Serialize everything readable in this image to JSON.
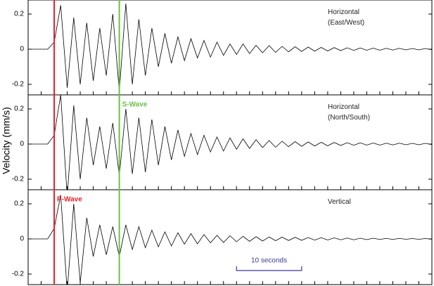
{
  "chart_data": {
    "type": "line",
    "y_label": "Velocity (mm/s)",
    "x": [
      0,
      1,
      2,
      3,
      4,
      5,
      6,
      7,
      8,
      9,
      10,
      11,
      12,
      13,
      14,
      15,
      16,
      17,
      18,
      19,
      20,
      21,
      22,
      23,
      24,
      25,
      26,
      27,
      28,
      29,
      30,
      31,
      32,
      33,
      34,
      35,
      36,
      37,
      38,
      39,
      40,
      41,
      42,
      43,
      44,
      45,
      46,
      47,
      48,
      49,
      50,
      51,
      52,
      53,
      54,
      55,
      56,
      57,
      58,
      59,
      60,
      61,
      62
    ],
    "xlim": [
      0,
      62
    ],
    "xticks": [
      0,
      2,
      4,
      6,
      8,
      10,
      12,
      14,
      16,
      18,
      20,
      22,
      24,
      26,
      28,
      30,
      32,
      34,
      36,
      38,
      40,
      42,
      44,
      46,
      48,
      50,
      52,
      54,
      56,
      58,
      60,
      62
    ],
    "ylim": [
      -0.26,
      0.28
    ],
    "yticks": [
      -0.2,
      0,
      0.2
    ],
    "series": [
      {
        "name": "Horizontal (East/West)",
        "color": "#000000",
        "values": [
          0,
          0,
          0,
          0,
          0.04,
          0.25,
          -0.22,
          0.18,
          -0.2,
          0.15,
          -0.18,
          0.12,
          -0.15,
          0.2,
          -0.24,
          0.26,
          -0.2,
          0.17,
          -0.15,
          0.12,
          -0.1,
          0.09,
          -0.08,
          0.07,
          -0.065,
          0.06,
          -0.05,
          0.05,
          -0.045,
          0.04,
          -0.035,
          0.03,
          -0.03,
          0.03,
          -0.025,
          0.022,
          -0.02,
          0.02,
          -0.018,
          0.016,
          -0.015,
          0.014,
          -0.013,
          0.012,
          -0.011,
          0.01,
          -0.01,
          0.009,
          -0.008,
          0.008,
          -0.007,
          0.007,
          -0.006,
          0.006,
          -0.006,
          0.005,
          -0.005,
          0.005,
          -0.004,
          0.004,
          -0.004,
          0.004,
          -0.003
        ]
      },
      {
        "name": "Horizontal (North/South)",
        "color": "#000000",
        "values": [
          0,
          0,
          0,
          0,
          0.05,
          0.28,
          -0.3,
          0.22,
          -0.2,
          0.15,
          -0.12,
          0.1,
          -0.14,
          0.12,
          -0.18,
          0.2,
          -0.17,
          0.15,
          -0.16,
          0.14,
          -0.12,
          0.1,
          -0.09,
          0.08,
          -0.07,
          0.06,
          -0.06,
          0.05,
          -0.045,
          0.04,
          -0.04,
          0.035,
          -0.03,
          0.03,
          -0.025,
          0.025,
          -0.02,
          0.02,
          -0.018,
          0.016,
          -0.015,
          0.014,
          -0.013,
          0.012,
          -0.011,
          0.01,
          -0.01,
          0.009,
          -0.008,
          0.008,
          -0.007,
          0.007,
          -0.006,
          0.006,
          -0.006,
          0.005,
          -0.005,
          0.005,
          -0.004,
          0.004,
          -0.004,
          0.004,
          -0.003
        ]
      },
      {
        "name": "Vertical",
        "color": "#000000",
        "values": [
          0,
          0,
          0,
          0,
          0.06,
          0.25,
          -0.3,
          0.2,
          -0.25,
          0.12,
          -0.1,
          0.08,
          -0.09,
          0.07,
          -0.1,
          0.08,
          -0.06,
          0.07,
          -0.05,
          0.05,
          -0.045,
          0.04,
          -0.04,
          0.035,
          -0.03,
          0.03,
          -0.028,
          0.025,
          -0.022,
          0.02,
          -0.02,
          0.018,
          -0.016,
          0.015,
          -0.014,
          0.013,
          -0.012,
          0.011,
          -0.01,
          0.01,
          -0.009,
          0.009,
          -0.008,
          0.008,
          -0.007,
          0.007,
          -0.006,
          0.006,
          -0.005,
          0.005,
          -0.005,
          0.004,
          -0.004,
          0.004,
          -0.003,
          0.003,
          -0.003,
          0.003,
          -0.002,
          0.002,
          -0.002,
          0.002,
          -0.002
        ]
      }
    ],
    "markers": [
      {
        "label": "P-Wave",
        "x": 4,
        "color": "#e8202a"
      },
      {
        "label": "S-Wave",
        "x": 14,
        "color": "#6cbf45"
      }
    ],
    "scale_bar": {
      "label": "10 seconds",
      "start": 32,
      "end": 42,
      "color": "#3a3a96"
    }
  }
}
